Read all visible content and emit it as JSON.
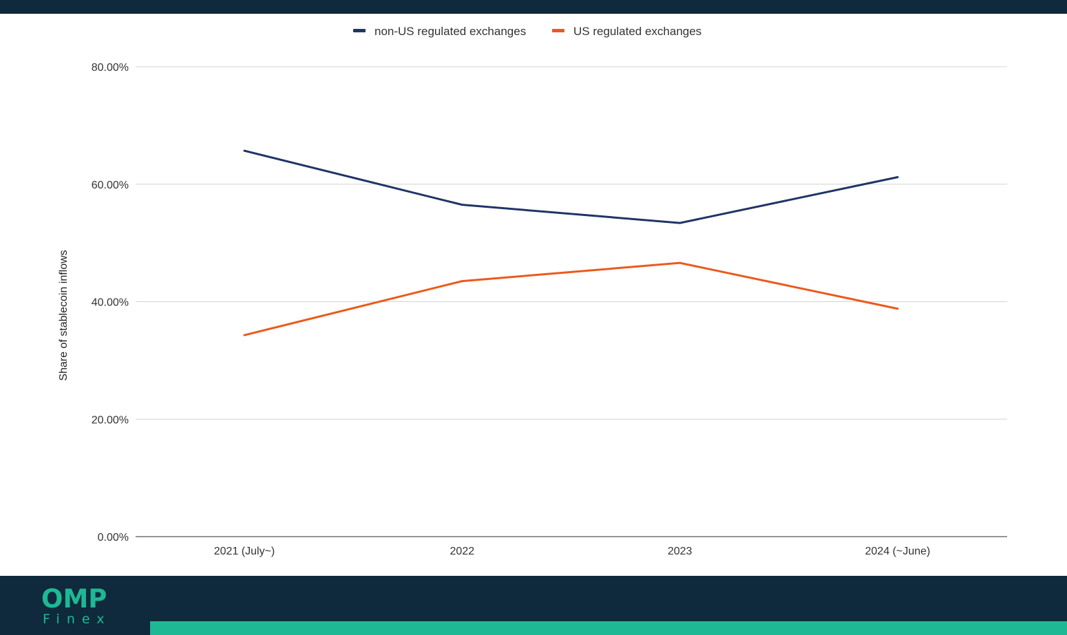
{
  "chart_data": {
    "type": "line",
    "categories": [
      "2021 (July~)",
      "2022",
      "2023",
      "2024 (~June)"
    ],
    "series": [
      {
        "name": "non-US regulated exchanges",
        "color": "#1f3566",
        "values": [
          65.7,
          56.5,
          53.4,
          61.2
        ]
      },
      {
        "name": "US regulated exchanges",
        "color": "#ea5a1c",
        "values": [
          34.3,
          43.5,
          46.6,
          38.8
        ]
      }
    ],
    "ylabel": "Share of stablecoin inflows",
    "ylim": [
      0,
      80
    ],
    "yticks": [
      "0.00%",
      "20.00%",
      "40.00%",
      "60.00%",
      "80.00%"
    ],
    "ytick_values": [
      0,
      20,
      40,
      60,
      80
    ],
    "grid": true,
    "legend_position": "top-center"
  },
  "brand": {
    "logo_main": "OMP",
    "logo_sub": "Finex",
    "accent_color": "#1fb894",
    "dark_color": "#0e2a3c"
  }
}
